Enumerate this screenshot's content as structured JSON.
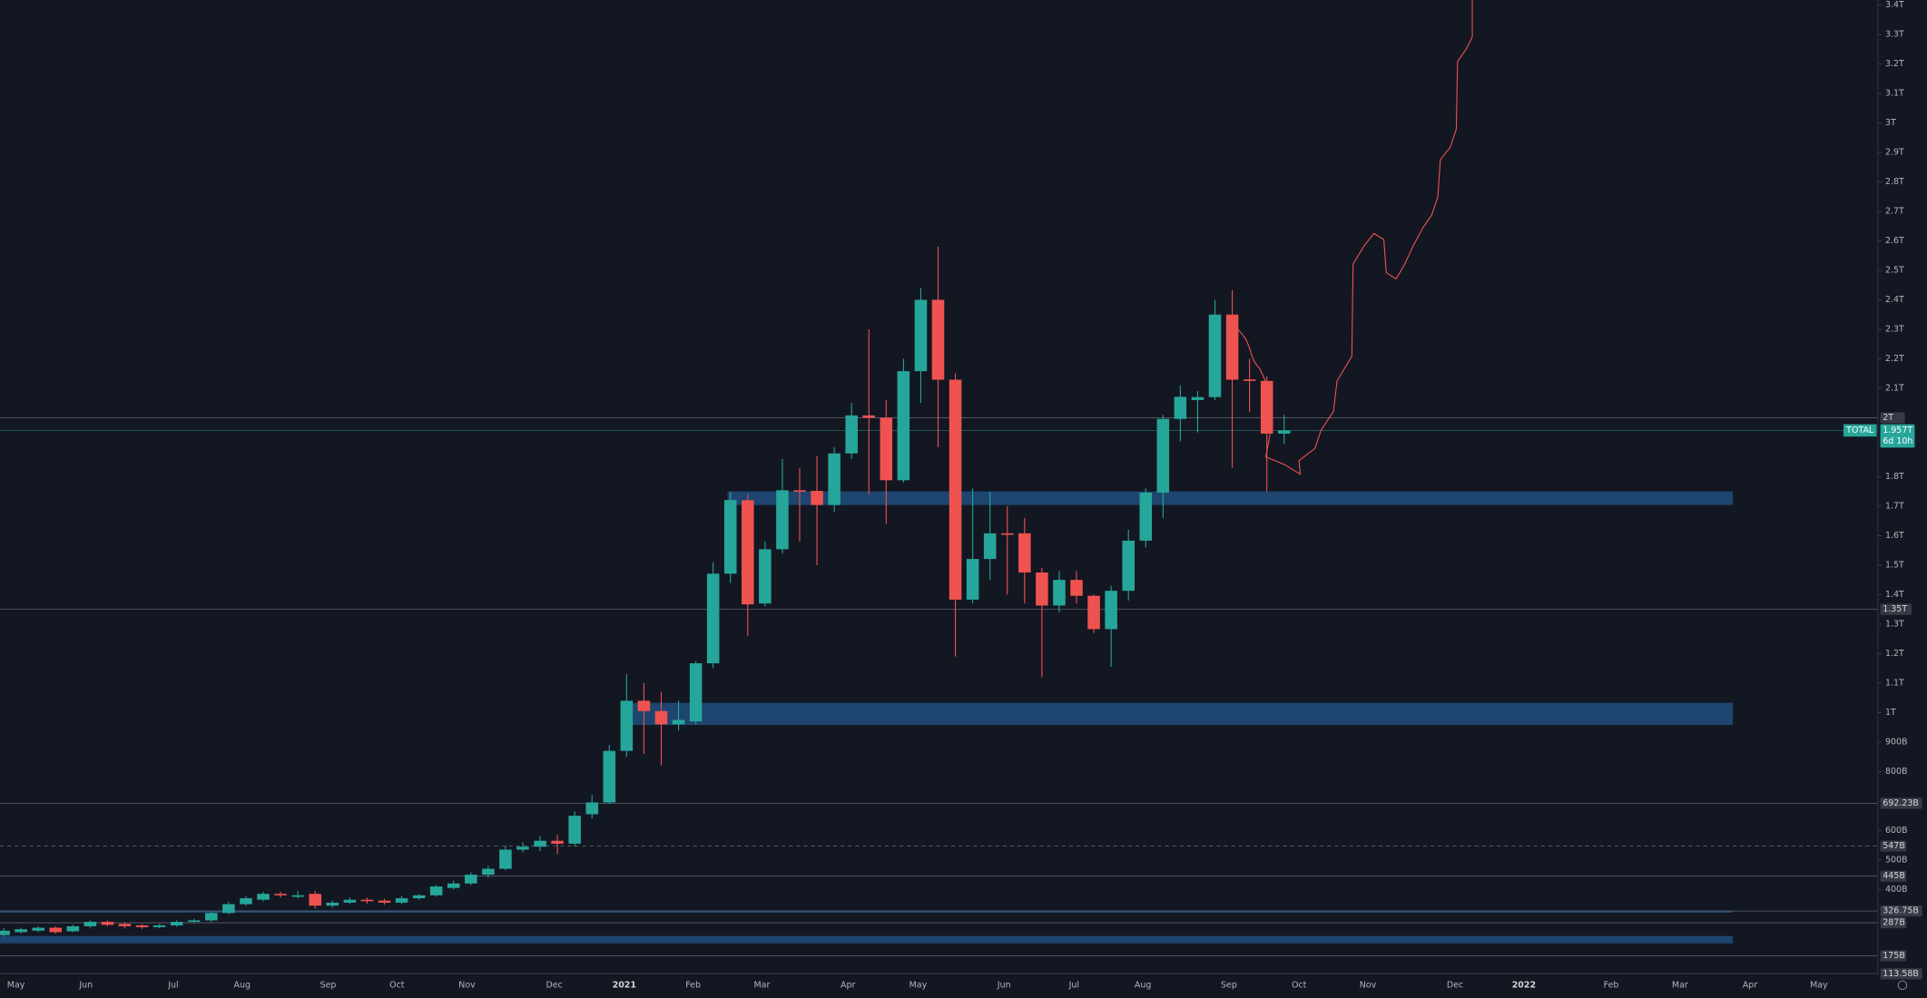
{
  "chart_data": {
    "type": "candlestick",
    "symbol": "TOTAL",
    "countdown": "6d 10h",
    "up_color": "#26a69a",
    "down_color": "#ef5350",
    "zone_color": "#1f4a78",
    "ylim": [
      113,
      3417
    ],
    "yticks": [
      {
        "value": 3400,
        "label": "3.4T"
      },
      {
        "value": 3300,
        "label": "3.3T"
      },
      {
        "value": 3200,
        "label": "3.2T"
      },
      {
        "value": 3100,
        "label": "3.1T"
      },
      {
        "value": 3000,
        "label": "3T"
      },
      {
        "value": 2900,
        "label": "2.9T"
      },
      {
        "value": 2800,
        "label": "2.8T"
      },
      {
        "value": 2700,
        "label": "2.7T"
      },
      {
        "value": 2600,
        "label": "2.6T"
      },
      {
        "value": 2500,
        "label": "2.5T"
      },
      {
        "value": 2400,
        "label": "2.4T"
      },
      {
        "value": 2300,
        "label": "2.3T"
      },
      {
        "value": 2200,
        "label": "2.2T"
      },
      {
        "value": 2100,
        "label": "2.1T"
      },
      {
        "value": 1800,
        "label": "1.8T"
      },
      {
        "value": 1700,
        "label": "1.7T"
      },
      {
        "value": 1600,
        "label": "1.6T"
      },
      {
        "value": 1500,
        "label": "1.5T"
      },
      {
        "value": 1400,
        "label": "1.4T"
      },
      {
        "value": 1300,
        "label": "1.3T"
      },
      {
        "value": 1200,
        "label": "1.2T"
      },
      {
        "value": 1100,
        "label": "1.1T"
      },
      {
        "value": 1000,
        "label": "1T"
      },
      {
        "value": 900,
        "label": "900B"
      },
      {
        "value": 800,
        "label": "800B"
      },
      {
        "value": 600,
        "label": "600B"
      },
      {
        "value": 500,
        "label": "500B"
      },
      {
        "value": 400,
        "label": "400B"
      }
    ],
    "time_labels": [
      "May",
      "Jun",
      "Jul",
      "Aug",
      "Sep",
      "Oct",
      "Nov",
      "Dec",
      "2021",
      "Feb",
      "Mar",
      "Apr",
      "May",
      "Jun",
      "Jul",
      "Aug",
      "Sep",
      "Oct",
      "Nov",
      "Dec",
      "2022",
      "Feb",
      "Mar",
      "Apr",
      "May"
    ],
    "current_price": {
      "value": 1957,
      "label": "1.957T"
    },
    "price_lines": [
      {
        "value": 2000,
        "label": "2T"
      },
      {
        "value": 1350,
        "label": "1.35T"
      },
      {
        "value": 692.23,
        "label": "692.23B"
      },
      {
        "value": 547,
        "label": "547B"
      },
      {
        "value": 445,
        "label": "445B"
      },
      {
        "value": 326.75,
        "label": "326.75B"
      },
      {
        "value": 287,
        "label": "287B"
      },
      {
        "value": 175,
        "label": "175B"
      },
      {
        "value": 113.58,
        "label": "113.58B"
      }
    ],
    "zones": [
      {
        "low": 1704,
        "high": 1750
      },
      {
        "low": 958,
        "high": 1033
      },
      {
        "low": 321,
        "high": 329
      },
      {
        "low": 217,
        "high": 242
      }
    ],
    "open": [
      245,
      255,
      260,
      270,
      258,
      275,
      290,
      283,
      278,
      272,
      278,
      290,
      295,
      320,
      350,
      365,
      385,
      375,
      385,
      345,
      355,
      365,
      362,
      355,
      370,
      380,
      405,
      420,
      450,
      470,
      535,
      545,
      565,
      555,
      655,
      695,
      870,
      1040,
      1005,
      960,
      970,
      1167,
      1471,
      1720,
      1370,
      1554,
      1754,
      1752,
      1704,
      1879,
      2008,
      2000,
      1788,
      2158,
      2400,
      2129,
      1383,
      1521,
      1608,
      1608,
      1475,
      1363,
      1450,
      1396,
      1283,
      1413,
      1583,
      1746,
      1996,
      2060,
      2070,
      2350,
      2130,
      2125,
      1946
    ],
    "high": [
      268,
      270,
      275,
      275,
      280,
      295,
      295,
      288,
      282,
      283,
      295,
      300,
      325,
      358,
      378,
      392,
      392,
      395,
      395,
      362,
      372,
      372,
      368,
      378,
      385,
      415,
      430,
      458,
      480,
      548,
      560,
      580,
      585,
      665,
      720,
      890,
      1130,
      1100,
      1070,
      1040,
      1175,
      1510,
      1750,
      1740,
      1580,
      1860,
      1830,
      1870,
      1900,
      2050,
      2300,
      2060,
      2200,
      2440,
      2580,
      2150,
      1760,
      1750,
      1700,
      1660,
      1490,
      1480,
      1480,
      1400,
      1430,
      1620,
      1760,
      2010,
      2110,
      2090,
      2400,
      2433,
      2200,
      2140,
      2010
    ],
    "low": [
      240,
      250,
      255,
      250,
      255,
      270,
      275,
      268,
      266,
      268,
      274,
      285,
      290,
      315,
      345,
      360,
      372,
      370,
      335,
      338,
      350,
      352,
      348,
      350,
      365,
      375,
      400,
      415,
      440,
      465,
      525,
      530,
      520,
      545,
      640,
      690,
      850,
      860,
      820,
      940,
      960,
      1150,
      1440,
      1260,
      1360,
      1540,
      1580,
      1500,
      1680,
      1860,
      1740,
      1640,
      1780,
      2050,
      1900,
      1190,
      1370,
      1450,
      1400,
      1370,
      1120,
      1340,
      1370,
      1270,
      1155,
      1380,
      1560,
      1660,
      1920,
      1950,
      2060,
      1830,
      2020,
      1750,
      1910
    ],
    "close": [
      260,
      265,
      270,
      255,
      275,
      290,
      280,
      275,
      272,
      278,
      290,
      295,
      320,
      350,
      370,
      385,
      380,
      380,
      345,
      355,
      365,
      360,
      355,
      370,
      380,
      410,
      420,
      450,
      470,
      535,
      545,
      565,
      555,
      650,
      695,
      870,
      1040,
      1005,
      960,
      975,
      1167,
      1471,
      1721,
      1367,
      1554,
      1754,
      1750,
      1704,
      1879,
      2008,
      2000,
      1788,
      2158,
      2400,
      2129,
      1383,
      1521,
      1608,
      1605,
      1475,
      1363,
      1450,
      1396,
      1283,
      1413,
      1583,
      1746,
      1996,
      2071,
      2070,
      2350,
      2129,
      2125,
      1946,
      1957
    ]
  }
}
